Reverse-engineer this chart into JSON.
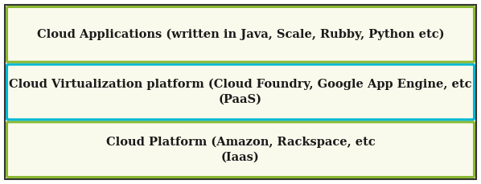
{
  "background_color": "#ffffff",
  "outer_border_color": "#333333",
  "box_bg_color": "#fafaec",
  "boxes": [
    {
      "label": "Cloud Applications (written in Java, Scale, Rubby, Python etc)",
      "border_color": "#8ab832",
      "text_color": "#1a1a1a",
      "multiline": false
    },
    {
      "label": "Cloud Virtualization platform (Cloud Foundry, Google App Engine, etc\n(PaaS)",
      "border_color": "#00b8d4",
      "text_color": "#1a1a1a",
      "multiline": true
    },
    {
      "label": "Cloud Platform (Amazon, Rackspace, etc\n(Iaas)",
      "border_color": "#8ab832",
      "text_color": "#1a1a1a",
      "multiline": true
    }
  ],
  "font_size": 10.5,
  "font_family": "DejaVu Serif",
  "font_weight": "bold"
}
